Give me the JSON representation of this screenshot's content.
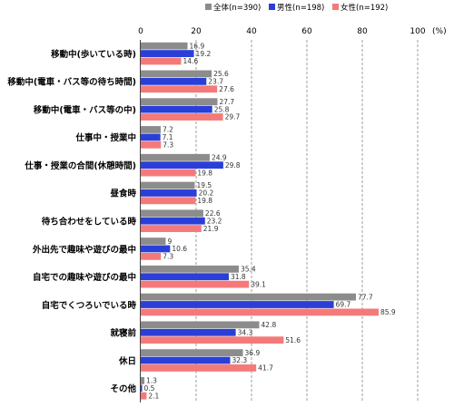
{
  "chart_data": {
    "type": "bar",
    "orientation": "horizontal",
    "unit_label": "(%)",
    "xlim": [
      0,
      100
    ],
    "xticks": [
      "0",
      "20",
      "40",
      "60",
      "80",
      "100"
    ],
    "grid": "dashed vertical",
    "legend_position": "top",
    "categories": [
      "移動中(歩いている時)",
      "移動中(電車・バス等の待ち時間)",
      "移動中(電車・バス等の中)",
      "仕事中・授業中",
      "仕事・授業の合間(休憩時間)",
      "昼食時",
      "待ち合わせをしている時",
      "外出先で趣味や遊びの最中",
      "自宅での趣味や遊びの最中",
      "自宅でくつろいでいる時",
      "就寝前",
      "休日",
      "その他"
    ],
    "series": [
      {
        "name": "全体(n=390)",
        "color": "#8c8c8c",
        "values": [
          16.9,
          25.6,
          27.7,
          7.2,
          24.9,
          19.5,
          22.6,
          9,
          35.4,
          77.7,
          42.8,
          36.9,
          1.3
        ],
        "labels": [
          "16.9",
          "25.6",
          "27.7",
          "7.2",
          "24.9",
          "19.5",
          "22.6",
          "9",
          "35.4",
          "77.7",
          "42.8",
          "36.9",
          "1.3"
        ]
      },
      {
        "name": "男性(n=198)",
        "color": "#2a3fd8",
        "values": [
          19.2,
          23.7,
          25.8,
          7.1,
          29.8,
          20.2,
          23.2,
          10.6,
          31.8,
          69.7,
          34.3,
          32.3,
          0.5
        ],
        "labels": [
          "19.2",
          "23.7",
          "25.8",
          "7.1",
          "29.8",
          "20.2",
          "23.2",
          "10.6",
          "31.8",
          "69.7",
          "34.3",
          "32.3",
          "0.5"
        ]
      },
      {
        "name": "女性(n=192)",
        "color": "#f47a7a",
        "values": [
          14.6,
          27.6,
          29.7,
          7.3,
          19.8,
          19.8,
          21.9,
          7.3,
          39.1,
          85.9,
          51.6,
          41.7,
          2.1
        ],
        "labels": [
          "14.6",
          "27.6",
          "29.7",
          "7.3",
          "19.8",
          "19.8",
          "21.9",
          "7.3",
          "39.1",
          "85.9",
          "51.6",
          "41.7",
          "2.1"
        ]
      }
    ]
  }
}
